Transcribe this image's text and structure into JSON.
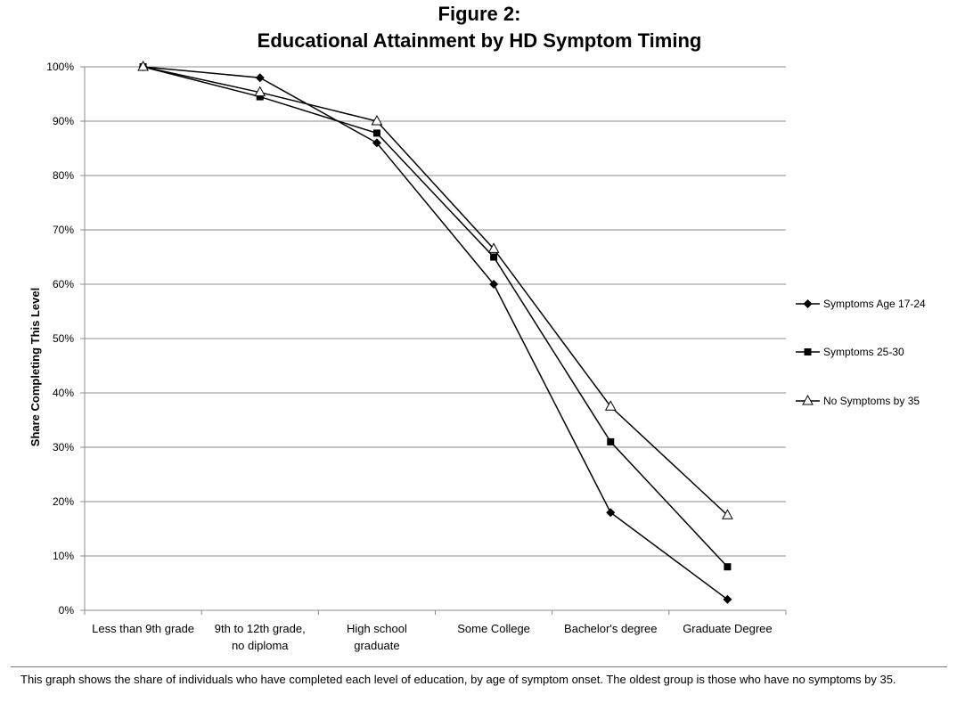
{
  "chart_data": {
    "type": "line",
    "title_line1": "Figure 2:",
    "title_line2": "Educational Attainment by HD Symptom Timing",
    "xlabel": "",
    "ylabel": "Share Completing This Level",
    "categories": [
      [
        "Less than 9th grade"
      ],
      [
        "9th to 12th grade,",
        "no diploma"
      ],
      [
        "High school",
        "graduate"
      ],
      [
        "Some College"
      ],
      [
        "Bachelor's degree"
      ],
      [
        "Graduate Degree"
      ]
    ],
    "y_ticks": [
      "0%",
      "10%",
      "20%",
      "30%",
      "40%",
      "50%",
      "60%",
      "70%",
      "80%",
      "90%",
      "100%"
    ],
    "ylim": [
      0,
      100
    ],
    "grid": true,
    "legend_position": "right",
    "series": [
      {
        "name": "Symptoms Age 17-24",
        "marker": "diamond",
        "values": [
          100,
          98,
          86,
          60,
          18,
          2
        ]
      },
      {
        "name": "Symptoms 25-30",
        "marker": "square",
        "values": [
          100,
          94.5,
          87.8,
          65,
          31,
          8
        ]
      },
      {
        "name": "No Symptoms by 35",
        "marker": "triangle-open",
        "values": [
          100,
          95.3,
          90,
          66.5,
          37.5,
          17.5
        ]
      }
    ]
  },
  "footnote": "This graph shows the share of individuals who have completed each level of education, by age of symptom onset.  The oldest group is those who have no symptoms by 35."
}
